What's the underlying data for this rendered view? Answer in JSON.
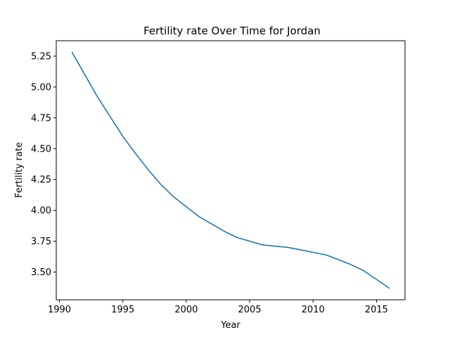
{
  "chart_data": {
    "type": "line",
    "title": "Fertility rate Over Time for Jordan",
    "xlabel": "Year",
    "ylabel": "Fertility rate",
    "xlim": [
      1989.75,
      2017.25
    ],
    "ylim": [
      3.275,
      5.375
    ],
    "xticks": [
      1990,
      1995,
      2000,
      2005,
      2010,
      2015
    ],
    "yticks": [
      3.5,
      3.75,
      4.0,
      4.25,
      4.5,
      4.75,
      5.0,
      5.25
    ],
    "ytick_labels": [
      "3.50",
      "3.75",
      "4.00",
      "4.25",
      "4.50",
      "4.75",
      "5.00",
      "5.25"
    ],
    "grid": false,
    "series": [
      {
        "color": "#1f77b4",
        "x": [
          1991,
          1992,
          1993,
          1994,
          1995,
          1996,
          1997,
          1998,
          1999,
          2000,
          2001,
          2002,
          2003,
          2004,
          2005,
          2006,
          2007,
          2008,
          2009,
          2010,
          2011,
          2012,
          2013,
          2014,
          2015,
          2016
        ],
        "y": [
          5.28,
          5.1,
          4.92,
          4.76,
          4.6,
          4.46,
          4.33,
          4.21,
          4.11,
          4.03,
          3.95,
          3.89,
          3.83,
          3.78,
          3.75,
          3.72,
          3.71,
          3.7,
          3.68,
          3.66,
          3.64,
          3.6,
          3.56,
          3.51,
          3.44,
          3.37
        ]
      }
    ]
  }
}
